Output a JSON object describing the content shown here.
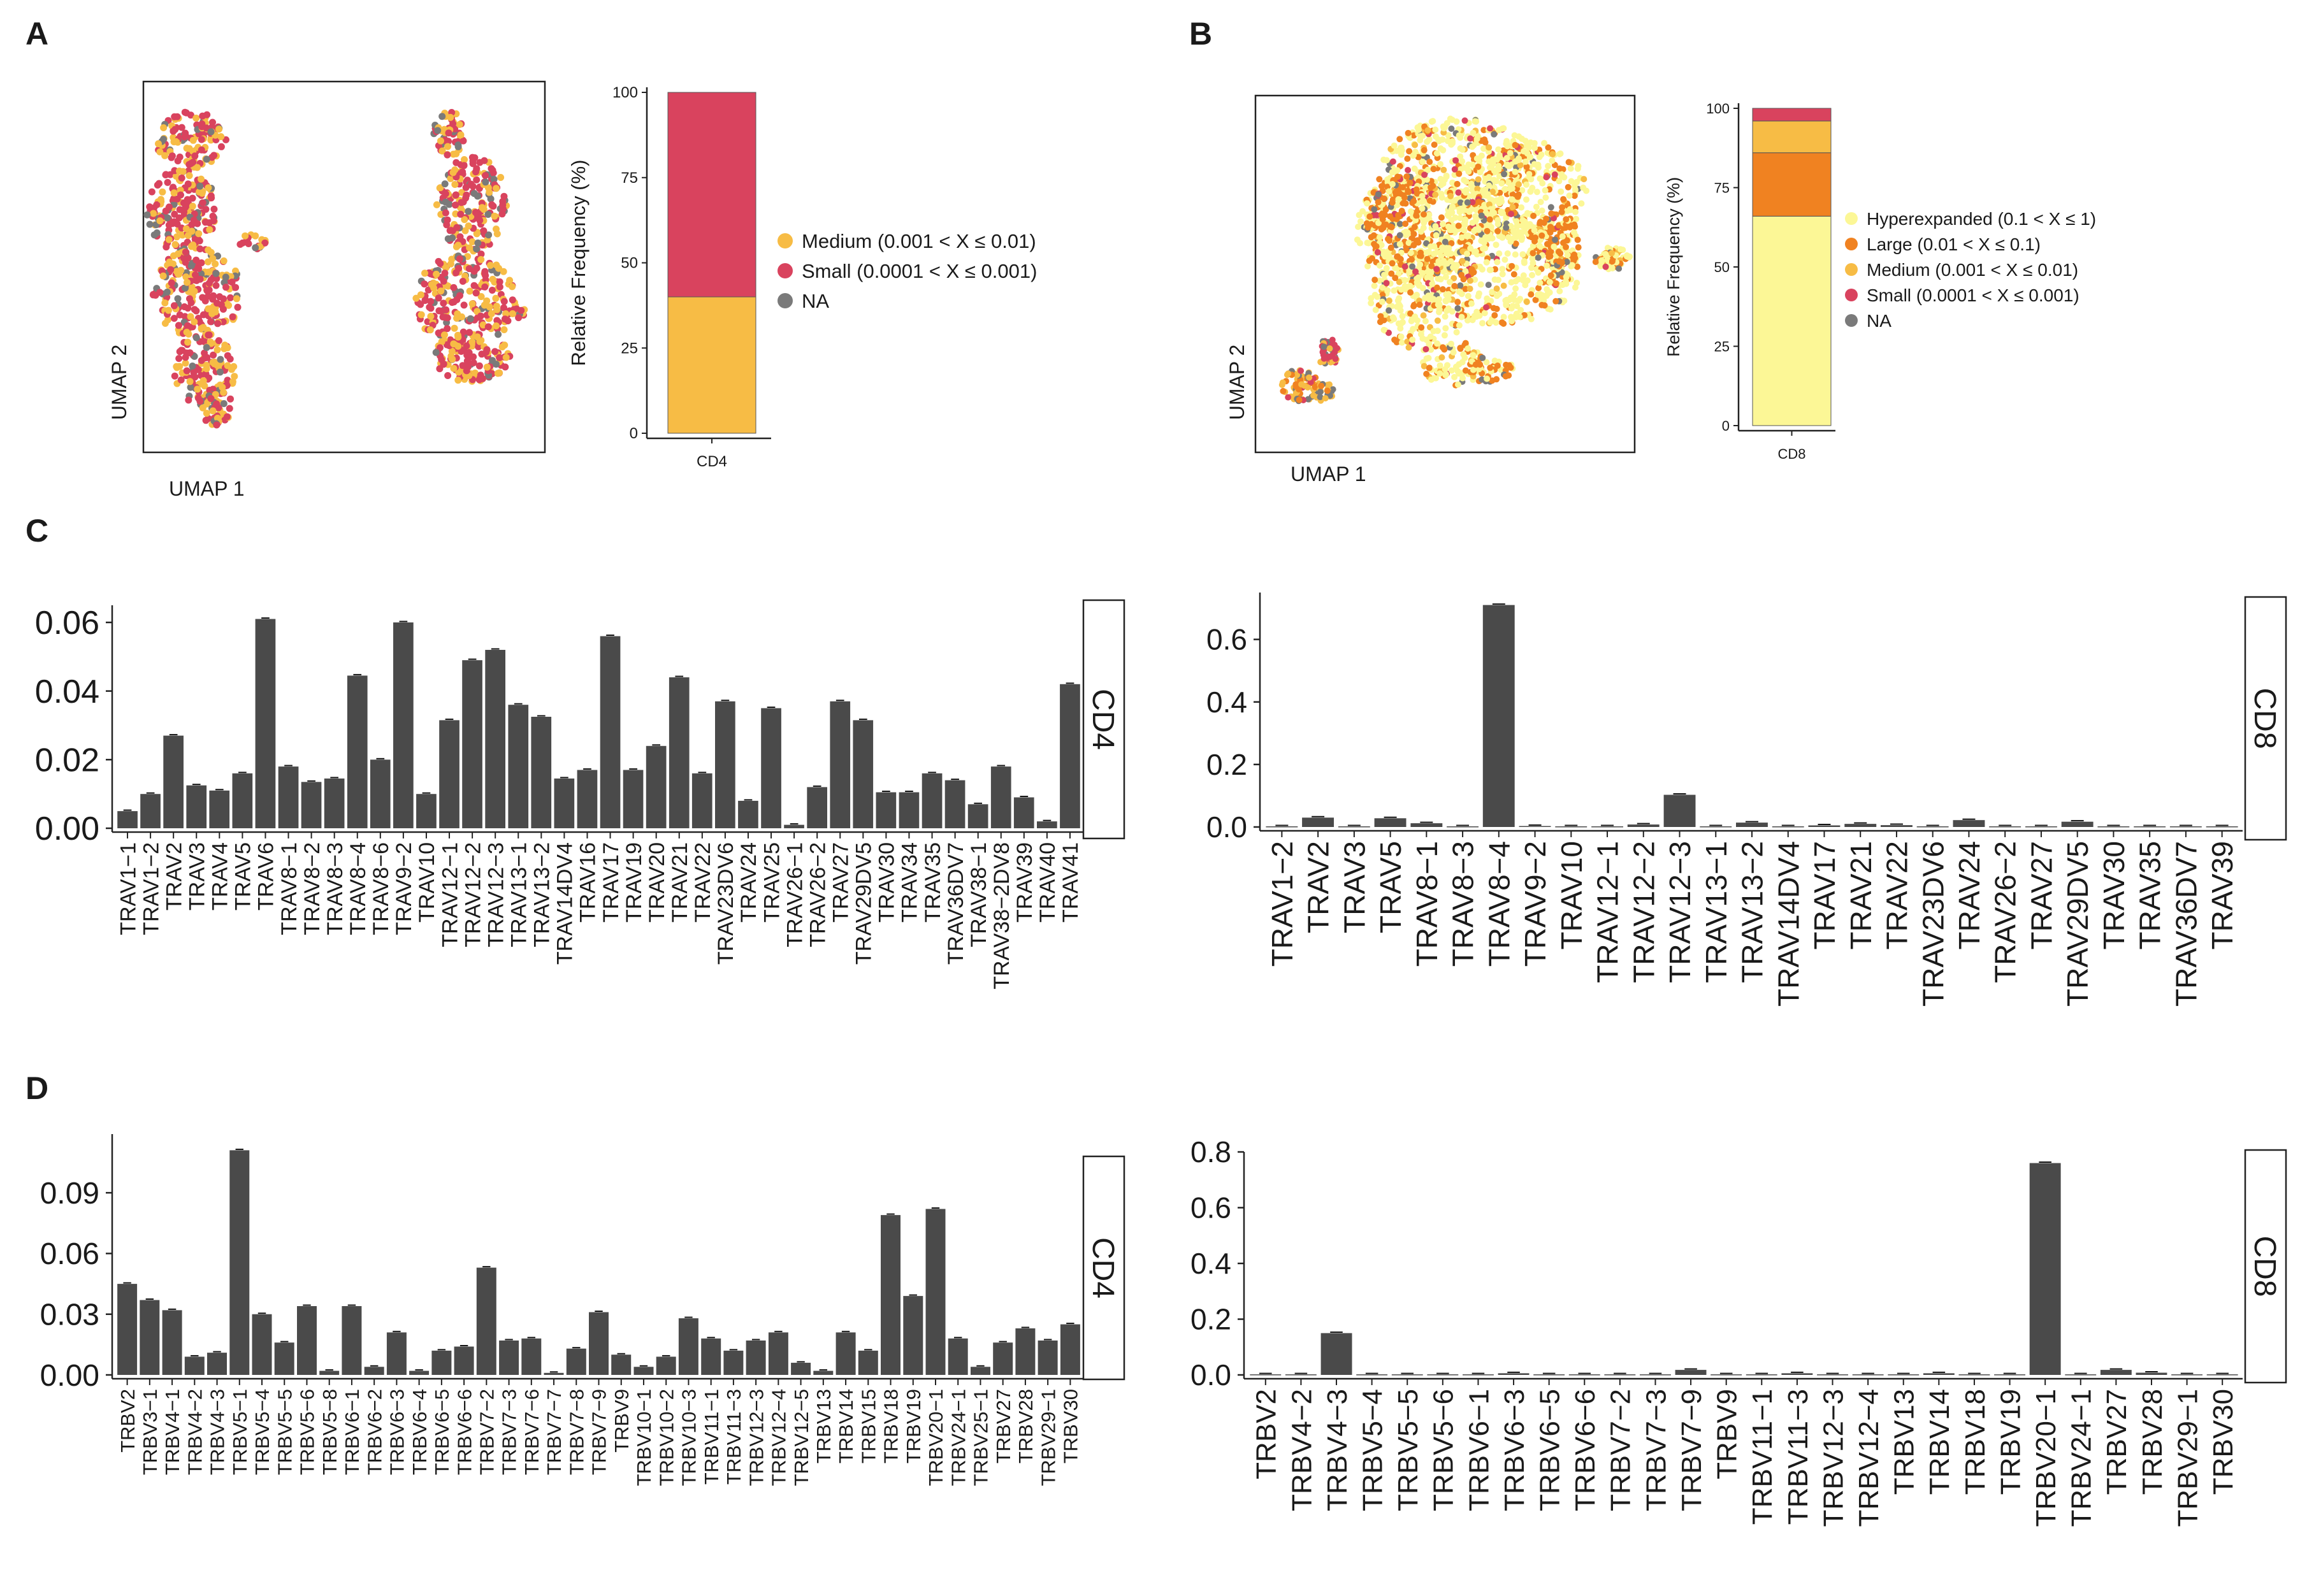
{
  "colors": {
    "hyper": "#FCF796",
    "large": "#F08221",
    "medium": "#F7BC45",
    "small": "#D9435E",
    "na": "#7A7A7A",
    "bar": "#4A4A4A"
  },
  "panel_labels": [
    "A",
    "B",
    "C",
    "D"
  ],
  "chart_data": [
    {
      "id": "A_umap",
      "type": "scatter",
      "panel": "A",
      "xlabel": "UMAP 1",
      "ylabel": "UMAP 2",
      "note": "UMAP of CD4 T cells colored by clonal expansion category (points not individually recoverable)"
    },
    {
      "id": "A_stack",
      "type": "bar",
      "stacked": true,
      "panel": "A",
      "categories": [
        "CD4"
      ],
      "ylabel": "Relative Frequency (%)",
      "ylim": [
        0,
        100
      ],
      "yticks": [
        0,
        25,
        50,
        75,
        100
      ],
      "series": [
        {
          "name": "Medium (0.001 < X ≤ 0.01)",
          "key": "medium",
          "values": [
            40
          ]
        },
        {
          "name": "Small (0.0001 < X ≤ 0.001)",
          "key": "small",
          "values": [
            60
          ]
        }
      ],
      "legend": [
        {
          "label": "Medium (0.001 < X ≤ 0.01)",
          "key": "medium"
        },
        {
          "label": "Small (0.0001 < X ≤ 0.001)",
          "key": "small"
        },
        {
          "label": "NA",
          "key": "na"
        }
      ]
    },
    {
      "id": "B_umap",
      "type": "scatter",
      "panel": "B",
      "xlabel": "UMAP 1",
      "ylabel": "UMAP 2",
      "note": "UMAP of CD8 T cells colored by clonal expansion category (points not individually recoverable)"
    },
    {
      "id": "B_stack",
      "type": "bar",
      "stacked": true,
      "panel": "B",
      "categories": [
        "CD8"
      ],
      "ylabel": "Relative Frequency (%)",
      "ylim": [
        0,
        100
      ],
      "yticks": [
        0,
        25,
        50,
        75,
        100
      ],
      "series": [
        {
          "name": "Hyperexpanded (0.1 < X ≤ 1)",
          "key": "hyper",
          "values": [
            66
          ]
        },
        {
          "name": "Large (0.01 < X ≤ 0.1)",
          "key": "large",
          "values": [
            20
          ]
        },
        {
          "name": "Medium (0.001 < X ≤ 0.01)",
          "key": "medium",
          "values": [
            10
          ]
        },
        {
          "name": "Small (0.0001 < X ≤ 0.001)",
          "key": "small",
          "values": [
            4
          ]
        }
      ],
      "legend": [
        {
          "label": "Hyperexpanded (0.1 < X ≤ 1)",
          "key": "hyper"
        },
        {
          "label": "Large (0.01 < X ≤ 0.1)",
          "key": "large"
        },
        {
          "label": "Medium (0.001 < X ≤ 0.01)",
          "key": "medium"
        },
        {
          "label": "Small (0.0001 < X ≤ 0.001)",
          "key": "small"
        },
        {
          "label": "NA",
          "key": "na"
        }
      ]
    },
    {
      "id": "C_CD4",
      "type": "bar",
      "panel": "C",
      "facet": "CD4",
      "ylim": [
        0,
        0.065
      ],
      "yticks": [
        "0.00",
        "0.02",
        "0.04",
        "0.06"
      ],
      "categories": [
        "TRAV1−1",
        "TRAV1−2",
        "TRAV2",
        "TRAV3",
        "TRAV4",
        "TRAV5",
        "TRAV6",
        "TRAV8−1",
        "TRAV8−2",
        "TRAV8−3",
        "TRAV8−4",
        "TRAV8−6",
        "TRAV9−2",
        "TRAV10",
        "TRAV12−1",
        "TRAV12−2",
        "TRAV12−3",
        "TRAV13−1",
        "TRAV13−2",
        "TRAV14DV4",
        "TRAV16",
        "TRAV17",
        "TRAV19",
        "TRAV20",
        "TRAV21",
        "TRAV22",
        "TRAV23DV6",
        "TRAV24",
        "TRAV25",
        "TRAV26−1",
        "TRAV26−2",
        "TRAV27",
        "TRAV29DV5",
        "TRAV30",
        "TRAV34",
        "TRAV35",
        "TRAV36DV7",
        "TRAV38−1",
        "TRAV38−2DV8",
        "TRAV39",
        "TRAV40",
        "TRAV41"
      ],
      "values": [
        0.005,
        0.01,
        0.027,
        0.0125,
        0.011,
        0.016,
        0.061,
        0.018,
        0.0135,
        0.0145,
        0.0445,
        0.02,
        0.06,
        0.01,
        0.0315,
        0.049,
        0.052,
        0.036,
        0.0325,
        0.0145,
        0.017,
        0.056,
        0.017,
        0.024,
        0.044,
        0.016,
        0.037,
        0.008,
        0.035,
        0.001,
        0.012,
        0.037,
        0.0315,
        0.0105,
        0.0105,
        0.016,
        0.014,
        0.007,
        0.018,
        0.009,
        0.002,
        0.042
      ],
      "label_size": 34
    },
    {
      "id": "C_CD8",
      "type": "bar",
      "panel": "C",
      "facet": "CD8",
      "ylim": [
        0,
        0.75
      ],
      "yticks": [
        "0.0",
        "0.2",
        "0.4",
        "0.6"
      ],
      "categories": [
        "TRAV1−2",
        "TRAV2",
        "TRAV3",
        "TRAV5",
        "TRAV8−1",
        "TRAV8−3",
        "TRAV8−4",
        "TRAV9−2",
        "TRAV10",
        "TRAV12−1",
        "TRAV12−2",
        "TRAV12−3",
        "TRAV13−1",
        "TRAV13−2",
        "TRAV14DV4",
        "TRAV17",
        "TRAV21",
        "TRAV22",
        "TRAV23DV6",
        "TRAV24",
        "TRAV26−2",
        "TRAV27",
        "TRAV29DV5",
        "TRAV30",
        "TRAV35",
        "TRAV36DV7",
        "TRAV39"
      ],
      "values": [
        0.002,
        0.03,
        0.002,
        0.028,
        0.012,
        0.002,
        0.71,
        0.003,
        0.002,
        0.002,
        0.008,
        0.103,
        0.002,
        0.014,
        0.002,
        0.005,
        0.01,
        0.006,
        0.002,
        0.022,
        0.002,
        0.002,
        0.017,
        0.002,
        0.002,
        0.002,
        0.002
      ],
      "label_size": 46
    },
    {
      "id": "D_CD4",
      "type": "bar",
      "panel": "D",
      "facet": "CD4",
      "ylim": [
        0,
        0.119
      ],
      "yticks": [
        "0.00",
        "0.03",
        "0.06",
        "0.09"
      ],
      "categories": [
        "TRBV2",
        "TRBV3−1",
        "TRBV4−1",
        "TRBV4−2",
        "TRBV4−3",
        "TRBV5−1",
        "TRBV5−4",
        "TRBV5−5",
        "TRBV5−6",
        "TRBV5−8",
        "TRBV6−1",
        "TRBV6−2",
        "TRBV6−3",
        "TRBV6−4",
        "TRBV6−5",
        "TRBV6−6",
        "TRBV7−2",
        "TRBV7−3",
        "TRBV7−6",
        "TRBV7−7",
        "TRBV7−8",
        "TRBV7−9",
        "TRBV9",
        "TRBV10−1",
        "TRBV10−2",
        "TRBV10−3",
        "TRBV11−1",
        "TRBV11−3",
        "TRBV12−3",
        "TRBV12−4",
        "TRBV12−5",
        "TRBV13",
        "TRBV14",
        "TRBV15",
        "TRBV18",
        "TRBV19",
        "TRBV20−1",
        "TRBV24−1",
        "TRBV25−1",
        "TRBV27",
        "TRBV28",
        "TRBV29−1",
        "TRBV30"
      ],
      "values": [
        0.045,
        0.037,
        0.032,
        0.009,
        0.011,
        0.111,
        0.03,
        0.016,
        0.034,
        0.002,
        0.034,
        0.004,
        0.021,
        0.002,
        0.012,
        0.014,
        0.053,
        0.017,
        0.018,
        0.001,
        0.013,
        0.031,
        0.01,
        0.004,
        0.009,
        0.028,
        0.018,
        0.012,
        0.017,
        0.021,
        0.006,
        0.002,
        0.021,
        0.012,
        0.079,
        0.039,
        0.082,
        0.018,
        0.004,
        0.016,
        0.023,
        0.017,
        0.025
      ],
      "label_size": 31
    },
    {
      "id": "D_CD8",
      "type": "bar",
      "panel": "D",
      "facet": "CD8",
      "ylim": [
        0,
        0.8
      ],
      "yticks": [
        "0.0",
        "0.2",
        "0.4",
        "0.6",
        "0.8"
      ],
      "categories": [
        "TRBV2",
        "TRBV4−2",
        "TRBV4−3",
        "TRBV5−4",
        "TRBV5−5",
        "TRBV5−6",
        "TRBV6−1",
        "TRBV6−3",
        "TRBV6−5",
        "TRBV6−6",
        "TRBV7−2",
        "TRBV7−3",
        "TRBV7−9",
        "TRBV9",
        "TRBV11−1",
        "TRBV11−3",
        "TRBV12−3",
        "TRBV12−4",
        "TRBV13",
        "TRBV14",
        "TRBV18",
        "TRBV19",
        "TRBV20−1",
        "TRBV24−1",
        "TRBV27",
        "TRBV28",
        "TRBV29−1",
        "TRBV30"
      ],
      "values": [
        0.002,
        0.002,
        0.15,
        0.002,
        0.002,
        0.002,
        0.002,
        0.006,
        0.002,
        0.002,
        0.002,
        0.002,
        0.018,
        0.002,
        0.002,
        0.006,
        0.002,
        0.002,
        0.002,
        0.006,
        0.002,
        0.002,
        0.76,
        0.002,
        0.018,
        0.008,
        0.002,
        0.002
      ],
      "label_size": 44
    }
  ]
}
